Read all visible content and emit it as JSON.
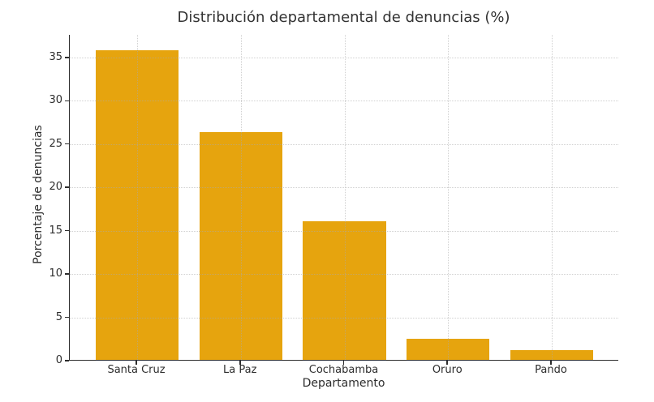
{
  "chart_data": {
    "type": "bar",
    "title": "Distribución departamental de denuncias (%)",
    "xlabel": "Departamento",
    "ylabel": "Porcentaje de denuncias",
    "categories": [
      "Santa Cruz",
      "La Paz",
      "Cochabamba",
      "Oruro",
      "Pando"
    ],
    "values": [
      35.7,
      26.3,
      16.0,
      2.4,
      1.1
    ],
    "yticks": [
      0,
      5,
      10,
      15,
      20,
      25,
      30,
      35
    ],
    "ylim": [
      0,
      37.6
    ],
    "xlim": [
      -0.65,
      4.65
    ],
    "bar_width_units": 0.8,
    "bar_color": "#E6A40E",
    "background_color": "#ffffff",
    "text_color": "#2d2d2d",
    "grid": "on",
    "grid_style": "dotted",
    "legend_position": "none"
  }
}
